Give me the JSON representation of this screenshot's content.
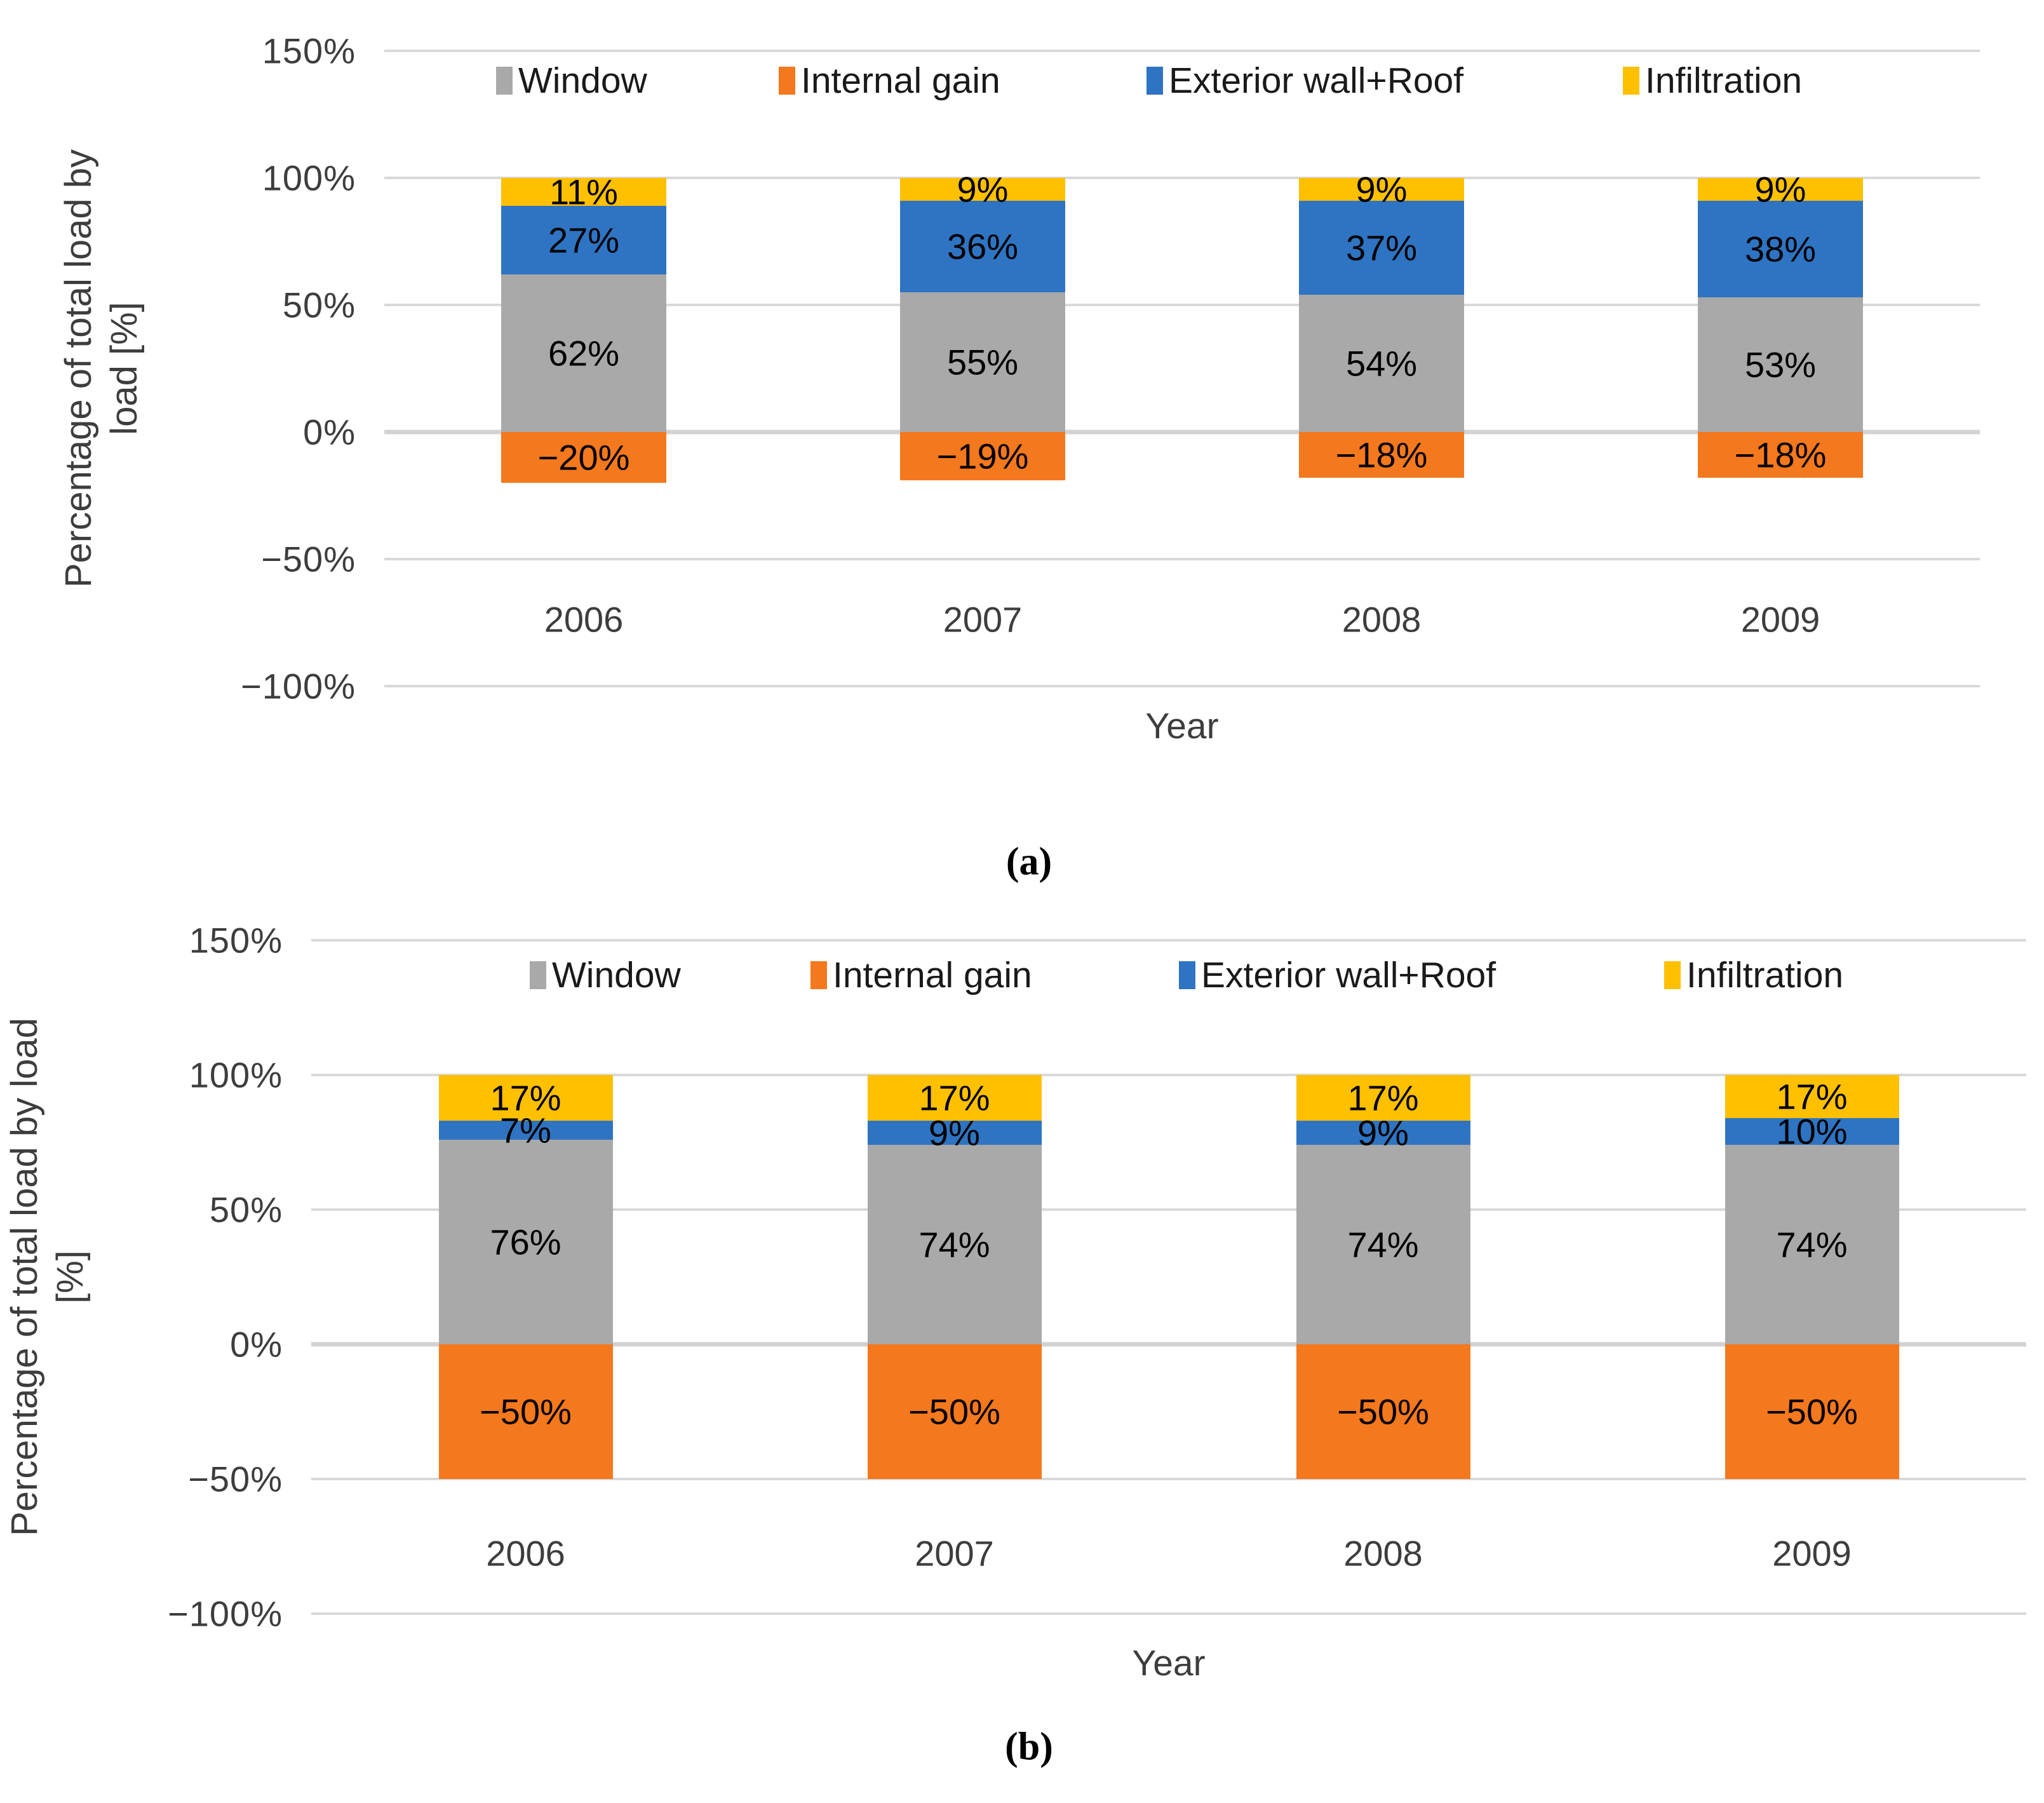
{
  "figure": {
    "background": "#ffffff",
    "caption_a": "(a)",
    "caption_b": "(b)"
  },
  "colors": {
    "window": "#a9a9a9",
    "internal_gain": "#f4781d",
    "exterior_wall_roof": "#2e74c2",
    "infiltration": "#ffc000",
    "gridline": "#d9d9d9",
    "tick_text": "#3d3d3d",
    "bar_label_text": "#000000"
  },
  "legend": {
    "items": [
      {
        "label": "Window",
        "color": "#a9a9a9"
      },
      {
        "label": "Internal gain",
        "color": "#f4781d"
      },
      {
        "label": "Exterior wall+Roof",
        "color": "#2e74c2"
      },
      {
        "label": "Infiltration",
        "color": "#ffc000"
      }
    ]
  },
  "chart_data": [
    {
      "id": "a",
      "type": "bar",
      "stacked": true,
      "caption": "(a)",
      "xlabel": "Year",
      "ylabel_lines": [
        "Percentage of total load by",
        "load [%]"
      ],
      "categories": [
        "2006",
        "2007",
        "2008",
        "2009"
      ],
      "series": [
        {
          "name": "Window",
          "color": "#a9a9a9",
          "values": [
            62,
            55,
            54,
            53
          ],
          "labels": [
            "62%",
            "55%",
            "54%",
            "53%"
          ]
        },
        {
          "name": "Internal gain",
          "color": "#f4781d",
          "values": [
            -20,
            -19,
            -18,
            -18
          ],
          "labels": [
            "−20%",
            "−19%",
            "−18%",
            "−18%"
          ]
        },
        {
          "name": "Exterior wall+Roof",
          "color": "#2e74c2",
          "values": [
            27,
            36,
            37,
            38
          ],
          "labels": [
            "27%",
            "36%",
            "37%",
            "38%"
          ]
        },
        {
          "name": "Infiltration",
          "color": "#ffc000",
          "values": [
            11,
            9,
            9,
            9
          ],
          "labels": [
            "11%",
            "9%",
            "9%",
            "9%"
          ]
        }
      ],
      "ylim": [
        -100,
        150
      ],
      "yticks": [
        {
          "v": 150,
          "label": "150%"
        },
        {
          "v": 100,
          "label": "100%"
        },
        {
          "v": 50,
          "label": "50%"
        },
        {
          "v": 0,
          "label": "0%"
        },
        {
          "v": -50,
          "label": "−50%"
        },
        {
          "v": -100,
          "label": "−100%"
        }
      ],
      "grid": true,
      "legend_position": "top-inside"
    },
    {
      "id": "b",
      "type": "bar",
      "stacked": true,
      "caption": "(b)",
      "xlabel": "Year",
      "ylabel_lines": [
        "Percentage of total load by load",
        "[%]"
      ],
      "categories": [
        "2006",
        "2007",
        "2008",
        "2009"
      ],
      "series": [
        {
          "name": "Window",
          "color": "#a9a9a9",
          "values": [
            76,
            74,
            74,
            74
          ],
          "labels": [
            "76%",
            "74%",
            "74%",
            "74%"
          ]
        },
        {
          "name": "Internal gain",
          "color": "#f4781d",
          "values": [
            -50,
            -50,
            -50,
            -50
          ],
          "labels": [
            "−50%",
            "−50%",
            "−50%",
            "−50%"
          ]
        },
        {
          "name": "Exterior wall+Roof",
          "color": "#2e74c2",
          "values": [
            7,
            9,
            9,
            10
          ],
          "labels": [
            "7%",
            "9%",
            "9%",
            "10%"
          ]
        },
        {
          "name": "Infiltration",
          "color": "#ffc000",
          "values": [
            17,
            17,
            17,
            17
          ],
          "labels": [
            "17%",
            "17%",
            "17%",
            "17%"
          ]
        }
      ],
      "ylim": [
        -100,
        150
      ],
      "yticks": [
        {
          "v": 150,
          "label": "150%"
        },
        {
          "v": 100,
          "label": "100%"
        },
        {
          "v": 50,
          "label": "50%"
        },
        {
          "v": 0,
          "label": "0%"
        },
        {
          "v": -50,
          "label": "−50%"
        },
        {
          "v": -100,
          "label": "−100%"
        }
      ],
      "grid": true,
      "legend_position": "top-inside"
    }
  ]
}
